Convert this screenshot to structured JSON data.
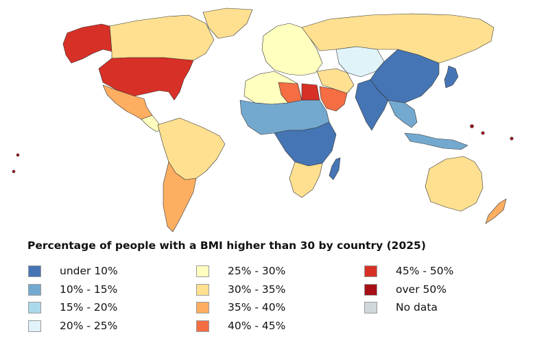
{
  "title": "Percentage of people with a BMI higher than 30 by country (2025)",
  "legend": [
    {
      "label": "under 10%",
      "color": "#4575b4"
    },
    {
      "label": "10% - 15%",
      "color": "#74a9cf"
    },
    {
      "label": "15% - 20%",
      "color": "#abd9e9"
    },
    {
      "label": "20% - 25%",
      "color": "#e0f3f8"
    },
    {
      "label": "25% - 30%",
      "color": "#ffffbf"
    },
    {
      "label": "30% - 35%",
      "color": "#fee090"
    },
    {
      "label": "35% - 40%",
      "color": "#fdae61"
    },
    {
      "label": "40% - 45%",
      "color": "#f46d43"
    },
    {
      "label": "45% - 50%",
      "color": "#d73027"
    },
    {
      "label": "over 50%",
      "color": "#a50f15"
    },
    {
      "label": "No data",
      "color": "#d0d8dc"
    }
  ],
  "map_regions": [
    {
      "name": "United States",
      "category": "45% - 50%"
    },
    {
      "name": "Alaska",
      "category": "45% - 50%"
    },
    {
      "name": "Canada",
      "category": "30% - 35%"
    },
    {
      "name": "Greenland",
      "category": "30% - 35%"
    },
    {
      "name": "Mexico",
      "category": "35% - 40%"
    },
    {
      "name": "Central America",
      "category": "25% - 30%"
    },
    {
      "name": "South America",
      "category": "30% - 35%"
    },
    {
      "name": "Argentina",
      "category": "35% - 40%"
    },
    {
      "name": "Europe",
      "category": "25% - 30%"
    },
    {
      "name": "Russia",
      "category": "30% - 35%"
    },
    {
      "name": "Central Asia",
      "category": "20% - 25%"
    },
    {
      "name": "China",
      "category": "under 10%"
    },
    {
      "name": "India",
      "category": "under 10%"
    },
    {
      "name": "Japan",
      "category": "under 10%"
    },
    {
      "name": "Southeast Asia",
      "category": "10% - 15%"
    },
    {
      "name": "Middle East",
      "category": "30% - 35%"
    },
    {
      "name": "Saudi Arabia",
      "category": "40% - 45%"
    },
    {
      "name": "Egypt",
      "category": "45% - 50%"
    },
    {
      "name": "Libya",
      "category": "40% - 45%"
    },
    {
      "name": "North Africa",
      "category": "25% - 30%"
    },
    {
      "name": "West Africa",
      "category": "10% - 15%"
    },
    {
      "name": "Central Africa",
      "category": "under 10%"
    },
    {
      "name": "Southern Africa",
      "category": "30% - 35%"
    },
    {
      "name": "Madagascar",
      "category": "under 10%"
    },
    {
      "name": "Australia",
      "category": "30% - 35%"
    },
    {
      "name": "New Zealand",
      "category": "35% - 40%"
    },
    {
      "name": "Pacific Islands",
      "category": "over 50%"
    }
  ]
}
